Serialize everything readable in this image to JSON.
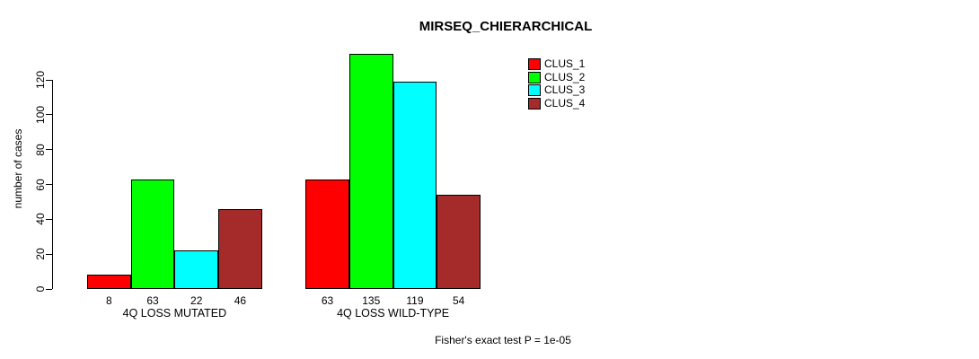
{
  "colors": {
    "background": "#ffffff",
    "axis": "#000000",
    "text": "#000000",
    "clus_1": "#ff0000",
    "clus_2": "#00ff00",
    "clus_3": "#00ffff",
    "clus_4": "#a52a2a"
  },
  "chart_data": {
    "type": "bar",
    "title": "MIRSEQ_CHIERARCHICAL",
    "ylabel": "number of cases",
    "xlabel": "",
    "categories": [
      "4Q LOSS MUTATED",
      "4Q LOSS WILD-TYPE"
    ],
    "series": [
      {
        "name": "CLUS_1",
        "color": "#ff0000",
        "values": [
          8,
          63
        ]
      },
      {
        "name": "CLUS_2",
        "color": "#00ff00",
        "values": [
          63,
          135
        ]
      },
      {
        "name": "CLUS_3",
        "color": "#00ffff",
        "values": [
          22,
          119
        ]
      },
      {
        "name": "CLUS_4",
        "color": "#a52a2a",
        "values": [
          46,
          54
        ]
      }
    ],
    "bar_value_labels": [
      [
        8,
        63,
        22,
        46
      ],
      [
        63,
        135,
        119,
        54
      ]
    ],
    "yticks": [
      0,
      20,
      40,
      60,
      80,
      100,
      120
    ],
    "ylim": [
      0,
      120
    ],
    "grid": false,
    "legend_position": "top-right",
    "legend_entries": [
      "CLUS_1",
      "CLUS_2",
      "CLUS_3",
      "CLUS_4"
    ],
    "annotation": "Fisher's exact test P = 1e-05"
  }
}
